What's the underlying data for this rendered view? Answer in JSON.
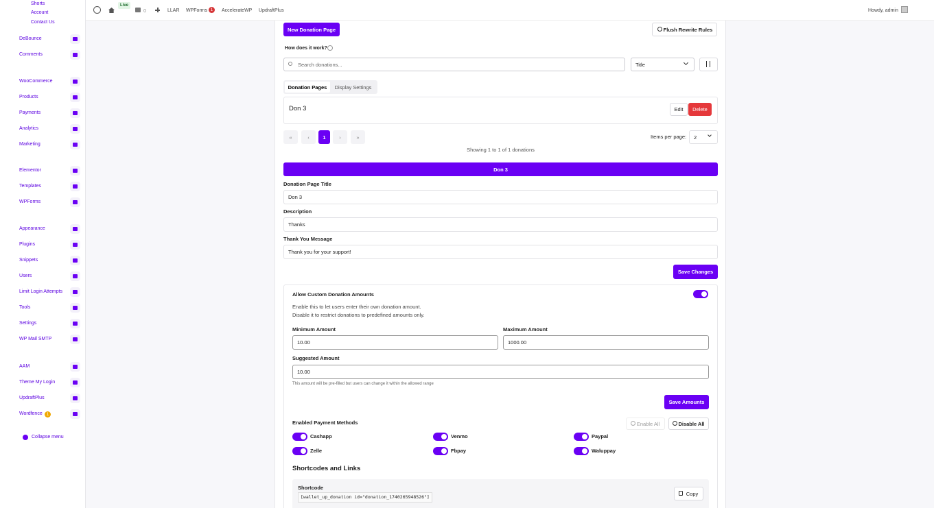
{
  "admin_bar": {
    "live": "Live",
    "comments": "0",
    "items": [
      "LLAR",
      "WPForms",
      "AccelerateWP",
      "UpdraftPlus"
    ],
    "wpforms_badge": "1",
    "howdy": "Howdy, admin"
  },
  "sidebar": {
    "sub_links": [
      "Shorts",
      "Account",
      "Contact Us"
    ],
    "groups": [
      [
        "DeBounce",
        "Comments"
      ],
      [
        "WooCommerce",
        "Products",
        "Payments",
        "Analytics",
        "Marketing"
      ],
      [
        "Elementor",
        "Templates",
        "WPForms"
      ],
      [
        "Appearance",
        "Plugins",
        "Snippets",
        "Users",
        "Limit Login Attempts",
        "Tools",
        "Settings",
        "WP Mail SMTP"
      ],
      [
        "AAM",
        "Theme My Login",
        "UpdraftPlus",
        "Wordfence"
      ]
    ],
    "wordfence_badge": "1",
    "collapse": "Collapse menu"
  },
  "toolbar": {
    "new_button": "New Donation Page",
    "flush_button": "Flush Rewrite Rules",
    "how": "How does it work?",
    "search_placeholder": "Search donations...",
    "sort_select": "Title"
  },
  "tabs": [
    "Donation Pages",
    "Display Settings"
  ],
  "list": {
    "items": [
      {
        "title": "Don 3"
      }
    ],
    "edit": "Edit",
    "delete": "Delete"
  },
  "pagination": {
    "current": "1",
    "items_per_page_label": "Items per page:",
    "items_per_page": "2",
    "showing": "Showing 1 to 1 of 1 donations"
  },
  "editor": {
    "header": "Don 3",
    "fields": [
      {
        "label": "Donation Page Title",
        "value": "Don 3"
      },
      {
        "label": "Description",
        "value": "Thanks"
      },
      {
        "label": "Thank You Message",
        "value": "Thank you for your support!"
      }
    ],
    "save": "Save Changes"
  },
  "custom_amounts": {
    "title": "Allow Custom Donation Amounts",
    "description": [
      "Enable this to let users enter their own donation amount.",
      "Disable it to restrict donations to predefined amounts only."
    ],
    "min_label": "Minimum Amount",
    "min_value": "10.00",
    "max_label": "Maximum Amount",
    "max_value": "1000.00",
    "suggested_label": "Suggested Amount",
    "suggested_value": "10.00",
    "help": "This amount will be pre-filled but users can change it within the allowed range",
    "save": "Save Amounts"
  },
  "payment_methods": {
    "title": "Enabled Payment Methods",
    "enable_all": "Enable All",
    "disable_all": "Disable All",
    "methods": [
      "Cashapp",
      "Venmo",
      "Paypal",
      "Zelle",
      "Fbpay",
      "Waluppay"
    ]
  },
  "shortcodes": {
    "title": "Shortcodes and Links",
    "label": "Shortcode",
    "code": "[wallet_up_donation id=\"donation_1740265948526\"]",
    "copy": "Copy"
  }
}
